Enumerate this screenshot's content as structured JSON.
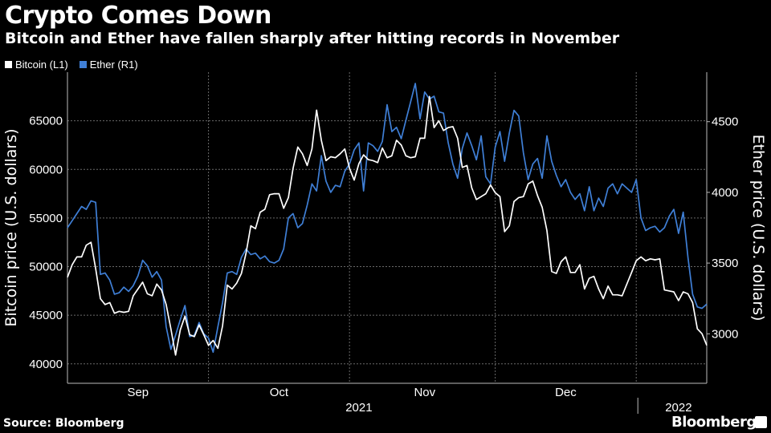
{
  "header": {
    "title": "Crypto Comes Down",
    "subtitle": "Bitcoin and Ether have fallen sharply after hitting records in November"
  },
  "legend": [
    {
      "label": "Bitcoin (L1)",
      "color": "#ffffff"
    },
    {
      "label": "Ether (R1)",
      "color": "#3f7fd6"
    }
  ],
  "footer": {
    "source": "Source: Bloomberg",
    "brand": "Bloomberg"
  },
  "chart_data": {
    "type": "line",
    "title": "Crypto Comes Down",
    "ylabel_left": "Bitcoin price (U.S. dollars)",
    "ylabel_right": "Ether price (U.S. dollars)",
    "ylim_left": [
      38000,
      70000
    ],
    "ylim_right": [
      2650,
      4850
    ],
    "yticks_left": [
      40000,
      45000,
      50000,
      55000,
      60000,
      65000
    ],
    "yticks_right": [
      3000,
      3500,
      4000,
      4500
    ],
    "xlim": [
      0,
      136
    ],
    "month_ticks": [
      {
        "label": "Sep",
        "x": 15
      },
      {
        "label": "Oct",
        "x": 45
      },
      {
        "label": "Nov",
        "x": 76
      },
      {
        "label": "Dec",
        "x": 106
      },
      {
        "label": "2022",
        "x": 130
      }
    ],
    "month_boundaries": [
      30,
      60,
      91,
      121
    ],
    "year_labels": [
      {
        "label": "2021",
        "x": 62
      }
    ],
    "series": [
      {
        "name": "Bitcoin (L1)",
        "axis": "left",
        "color": "#ffffff",
        "points": [
          [
            0,
            48900
          ],
          [
            1,
            50200
          ],
          [
            2,
            51000
          ],
          [
            3,
            51000
          ],
          [
            4,
            52200
          ],
          [
            5,
            52500
          ],
          [
            6,
            49800
          ],
          [
            7,
            46700
          ],
          [
            8,
            46100
          ],
          [
            9,
            46300
          ],
          [
            10,
            45200
          ],
          [
            11,
            45400
          ],
          [
            12,
            45300
          ],
          [
            13,
            45400
          ],
          [
            14,
            47000
          ],
          [
            15,
            47700
          ],
          [
            16,
            48400
          ],
          [
            17,
            47200
          ],
          [
            18,
            47000
          ],
          [
            19,
            48200
          ],
          [
            20,
            47600
          ],
          [
            21,
            46100
          ],
          [
            22,
            43600
          ],
          [
            23,
            40900
          ],
          [
            24,
            43500
          ],
          [
            25,
            44900
          ],
          [
            26,
            43000
          ],
          [
            27,
            42800
          ],
          [
            28,
            44000
          ],
          [
            29,
            43000
          ],
          [
            30,
            41900
          ],
          [
            31,
            42400
          ],
          [
            32,
            41600
          ],
          [
            33,
            43900
          ],
          [
            34,
            48100
          ],
          [
            35,
            47700
          ],
          [
            36,
            48300
          ],
          [
            37,
            49300
          ],
          [
            38,
            51400
          ],
          [
            39,
            54200
          ],
          [
            40,
            53900
          ],
          [
            41,
            55600
          ],
          [
            42,
            55900
          ],
          [
            43,
            57400
          ],
          [
            44,
            57500
          ],
          [
            45,
            57500
          ],
          [
            46,
            56000
          ],
          [
            47,
            57100
          ],
          [
            48,
            60100
          ],
          [
            49,
            62300
          ],
          [
            50,
            61600
          ],
          [
            51,
            60400
          ],
          [
            52,
            62100
          ],
          [
            53,
            66100
          ],
          [
            54,
            63000
          ],
          [
            55,
            60900
          ],
          [
            56,
            61300
          ],
          [
            57,
            61200
          ],
          [
            58,
            61600
          ],
          [
            59,
            62100
          ],
          [
            60,
            60100
          ],
          [
            61,
            58900
          ],
          [
            62,
            60600
          ],
          [
            63,
            61500
          ],
          [
            64,
            61000
          ],
          [
            65,
            60900
          ],
          [
            66,
            60700
          ],
          [
            67,
            62200
          ],
          [
            68,
            61200
          ],
          [
            69,
            61400
          ],
          [
            70,
            63000
          ],
          [
            71,
            62500
          ],
          [
            72,
            61400
          ],
          [
            73,
            61200
          ],
          [
            74,
            61300
          ],
          [
            75,
            63200
          ],
          [
            76,
            63200
          ],
          [
            77,
            67500
          ],
          [
            78,
            64300
          ],
          [
            79,
            65000
          ],
          [
            80,
            64000
          ],
          [
            81,
            64300
          ],
          [
            82,
            64400
          ],
          [
            83,
            63200
          ],
          [
            84,
            60200
          ],
          [
            85,
            60400
          ],
          [
            86,
            58100
          ],
          [
            87,
            56900
          ],
          [
            88,
            57200
          ],
          [
            89,
            57500
          ],
          [
            90,
            58400
          ],
          [
            91,
            57600
          ],
          [
            92,
            57200
          ],
          [
            93,
            53600
          ],
          [
            94,
            54200
          ],
          [
            95,
            56700
          ],
          [
            96,
            57100
          ],
          [
            97,
            57200
          ],
          [
            98,
            58500
          ],
          [
            99,
            58800
          ],
          [
            100,
            57300
          ],
          [
            101,
            56100
          ],
          [
            102,
            53700
          ],
          [
            103,
            49500
          ],
          [
            104,
            49300
          ],
          [
            105,
            50500
          ],
          [
            106,
            51000
          ],
          [
            107,
            49400
          ],
          [
            108,
            49400
          ],
          [
            109,
            50200
          ],
          [
            110,
            47700
          ],
          [
            111,
            48800
          ],
          [
            112,
            49000
          ],
          [
            113,
            47700
          ],
          [
            114,
            46700
          ],
          [
            115,
            48000
          ],
          [
            116,
            47100
          ],
          [
            117,
            47100
          ],
          [
            118,
            47000
          ],
          [
            119,
            48200
          ],
          [
            120,
            49400
          ],
          [
            121,
            50600
          ],
          [
            122,
            51000
          ],
          [
            123,
            50600
          ],
          [
            124,
            50800
          ],
          [
            125,
            50700
          ],
          [
            126,
            50800
          ],
          [
            127,
            47600
          ],
          [
            128,
            47500
          ],
          [
            129,
            47400
          ],
          [
            130,
            46500
          ],
          [
            131,
            47400
          ],
          [
            132,
            47200
          ],
          [
            133,
            46300
          ],
          [
            134,
            43600
          ],
          [
            135,
            43100
          ],
          [
            136,
            41900
          ]
        ]
      },
      {
        "name": "Ether (R1)",
        "axis": "right",
        "color": "#3f7fd6",
        "points": [
          [
            0,
            3750
          ],
          [
            1,
            3800
          ],
          [
            2,
            3850
          ],
          [
            3,
            3900
          ],
          [
            4,
            3880
          ],
          [
            5,
            3940
          ],
          [
            6,
            3930
          ],
          [
            7,
            3420
          ],
          [
            8,
            3430
          ],
          [
            9,
            3380
          ],
          [
            10,
            3280
          ],
          [
            11,
            3290
          ],
          [
            12,
            3330
          ],
          [
            13,
            3300
          ],
          [
            14,
            3340
          ],
          [
            15,
            3410
          ],
          [
            16,
            3520
          ],
          [
            17,
            3480
          ],
          [
            18,
            3400
          ],
          [
            19,
            3440
          ],
          [
            20,
            3380
          ],
          [
            21,
            3050
          ],
          [
            22,
            2890
          ],
          [
            23,
            2990
          ],
          [
            24,
            3100
          ],
          [
            25,
            3200
          ],
          [
            26,
            2980
          ],
          [
            27,
            2990
          ],
          [
            28,
            3080
          ],
          [
            29,
            3000
          ],
          [
            30,
            2970
          ],
          [
            31,
            2870
          ],
          [
            32,
            3050
          ],
          [
            33,
            3220
          ],
          [
            34,
            3430
          ],
          [
            35,
            3440
          ],
          [
            36,
            3420
          ],
          [
            37,
            3540
          ],
          [
            38,
            3600
          ],
          [
            39,
            3560
          ],
          [
            40,
            3570
          ],
          [
            41,
            3530
          ],
          [
            42,
            3550
          ],
          [
            43,
            3510
          ],
          [
            44,
            3500
          ],
          [
            45,
            3520
          ],
          [
            46,
            3600
          ],
          [
            47,
            3820
          ],
          [
            48,
            3850
          ],
          [
            49,
            3750
          ],
          [
            50,
            3780
          ],
          [
            51,
            3910
          ],
          [
            52,
            4060
          ],
          [
            53,
            4010
          ],
          [
            54,
            4260
          ],
          [
            55,
            4080
          ],
          [
            56,
            4000
          ],
          [
            57,
            4050
          ],
          [
            58,
            4040
          ],
          [
            59,
            4150
          ],
          [
            60,
            4200
          ],
          [
            61,
            4300
          ],
          [
            62,
            4350
          ],
          [
            63,
            4010
          ],
          [
            64,
            4350
          ],
          [
            65,
            4330
          ],
          [
            66,
            4290
          ],
          [
            67,
            4360
          ],
          [
            68,
            4620
          ],
          [
            69,
            4430
          ],
          [
            70,
            4460
          ],
          [
            71,
            4380
          ],
          [
            72,
            4510
          ],
          [
            73,
            4640
          ],
          [
            74,
            4770
          ],
          [
            75,
            4520
          ],
          [
            76,
            4710
          ],
          [
            77,
            4660
          ],
          [
            78,
            4680
          ],
          [
            79,
            4570
          ],
          [
            80,
            4560
          ],
          [
            81,
            4350
          ],
          [
            82,
            4200
          ],
          [
            83,
            4100
          ],
          [
            84,
            4310
          ],
          [
            85,
            4420
          ],
          [
            86,
            4330
          ],
          [
            87,
            4230
          ],
          [
            88,
            4400
          ],
          [
            89,
            4110
          ],
          [
            90,
            4060
          ],
          [
            91,
            4320
          ],
          [
            92,
            4430
          ],
          [
            93,
            4220
          ],
          [
            94,
            4420
          ],
          [
            95,
            4580
          ],
          [
            96,
            4540
          ],
          [
            97,
            4280
          ],
          [
            98,
            4090
          ],
          [
            99,
            4200
          ],
          [
            100,
            4240
          ],
          [
            101,
            4100
          ],
          [
            102,
            4400
          ],
          [
            103,
            4220
          ],
          [
            104,
            4120
          ],
          [
            105,
            4040
          ],
          [
            106,
            4090
          ],
          [
            107,
            4000
          ],
          [
            108,
            3950
          ],
          [
            109,
            3990
          ],
          [
            110,
            3870
          ],
          [
            111,
            4040
          ],
          [
            112,
            3870
          ],
          [
            113,
            3960
          ],
          [
            114,
            3900
          ],
          [
            115,
            4030
          ],
          [
            116,
            4060
          ],
          [
            117,
            3990
          ],
          [
            118,
            4060
          ],
          [
            119,
            4030
          ],
          [
            120,
            4000
          ],
          [
            121,
            4090
          ],
          [
            122,
            3820
          ],
          [
            123,
            3730
          ],
          [
            124,
            3750
          ],
          [
            125,
            3760
          ],
          [
            126,
            3720
          ],
          [
            127,
            3750
          ],
          [
            128,
            3830
          ],
          [
            129,
            3880
          ],
          [
            130,
            3710
          ],
          [
            131,
            3860
          ],
          [
            132,
            3540
          ],
          [
            133,
            3280
          ],
          [
            134,
            3190
          ],
          [
            135,
            3180
          ],
          [
            136,
            3210
          ]
        ]
      }
    ]
  }
}
